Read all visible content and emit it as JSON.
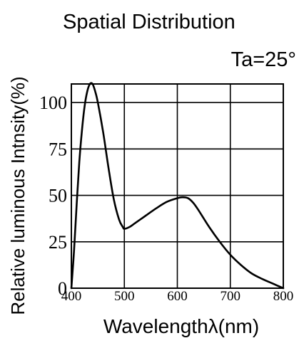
{
  "chart_data": {
    "type": "line",
    "title": "Spatial Distribution",
    "annotation": "Ta=25°",
    "xlabel": "Wavelengthλ(nm)",
    "ylabel": "Relative luminous Intnsity(%)",
    "xlim": [
      400,
      800
    ],
    "ylim": [
      0,
      110
    ],
    "x_ticks": [
      400,
      500,
      600,
      700,
      800
    ],
    "y_ticks": [
      0,
      25,
      50,
      75,
      100
    ],
    "grid": true,
    "colors": {
      "line": "#000000",
      "grid": "#000000",
      "background": "#ffffff"
    },
    "series": [
      {
        "values": [
          {
            "x": 400,
            "y": 0
          },
          {
            "x": 405,
            "y": 20
          },
          {
            "x": 410,
            "y": 45
          },
          {
            "x": 415,
            "y": 68
          },
          {
            "x": 420,
            "y": 85
          },
          {
            "x": 425,
            "y": 98
          },
          {
            "x": 430,
            "y": 106
          },
          {
            "x": 435,
            "y": 110
          },
          {
            "x": 440,
            "y": 110
          },
          {
            "x": 445,
            "y": 106
          },
          {
            "x": 450,
            "y": 100
          },
          {
            "x": 460,
            "y": 84
          },
          {
            "x": 470,
            "y": 65
          },
          {
            "x": 480,
            "y": 48
          },
          {
            "x": 490,
            "y": 37
          },
          {
            "x": 497,
            "y": 33
          },
          {
            "x": 500,
            "y": 32
          },
          {
            "x": 510,
            "y": 33
          },
          {
            "x": 520,
            "y": 35
          },
          {
            "x": 540,
            "y": 39
          },
          {
            "x": 560,
            "y": 43
          },
          {
            "x": 580,
            "y": 46.5
          },
          {
            "x": 600,
            "y": 48.5
          },
          {
            "x": 610,
            "y": 49
          },
          {
            "x": 620,
            "y": 48.5
          },
          {
            "x": 630,
            "y": 46
          },
          {
            "x": 640,
            "y": 42
          },
          {
            "x": 660,
            "y": 33
          },
          {
            "x": 680,
            "y": 25
          },
          {
            "x": 700,
            "y": 18
          },
          {
            "x": 720,
            "y": 12.5
          },
          {
            "x": 740,
            "y": 8
          },
          {
            "x": 760,
            "y": 5
          },
          {
            "x": 780,
            "y": 2.5
          },
          {
            "x": 800,
            "y": 0
          }
        ]
      }
    ]
  }
}
